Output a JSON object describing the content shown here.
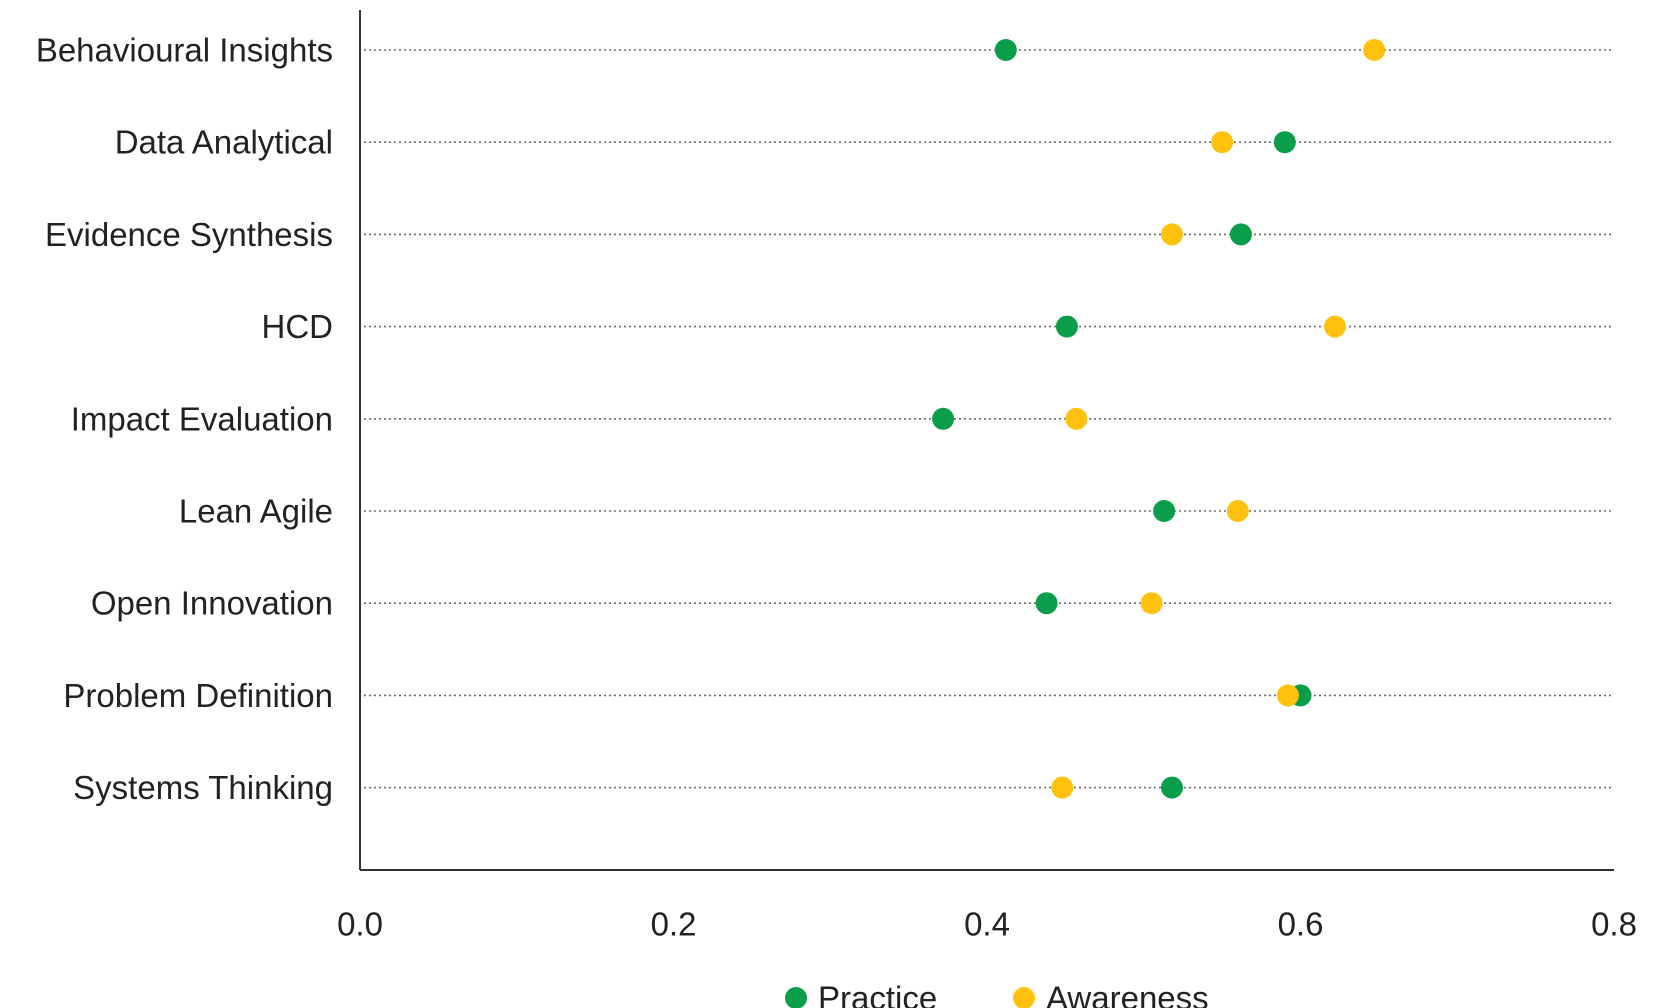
{
  "chart_data": {
    "type": "scatter",
    "title": "",
    "xlabel": "",
    "ylabel": "",
    "xlim": [
      0.0,
      0.8
    ],
    "x_ticks": [
      "0.0",
      "0.2",
      "0.4",
      "0.6",
      "0.8"
    ],
    "grid": "horizontal dotted",
    "legend_position": "bottom",
    "categories": [
      "Behavioural Insights",
      "Data Analytical",
      "Evidence Synthesis",
      "HCD",
      "Impact Evaluation",
      "Lean Agile",
      "Open Innovation",
      "Problem Definition",
      "Systems Thinking"
    ],
    "series": [
      {
        "name": "Practice",
        "color": "#0a9e4a",
        "values": [
          0.412,
          0.59,
          0.562,
          0.451,
          0.372,
          0.513,
          0.438,
          0.6,
          0.518
        ]
      },
      {
        "name": "Awareness",
        "color": "#fec20e",
        "values": [
          0.647,
          0.55,
          0.518,
          0.622,
          0.457,
          0.56,
          0.505,
          0.592,
          0.448
        ]
      }
    ]
  }
}
